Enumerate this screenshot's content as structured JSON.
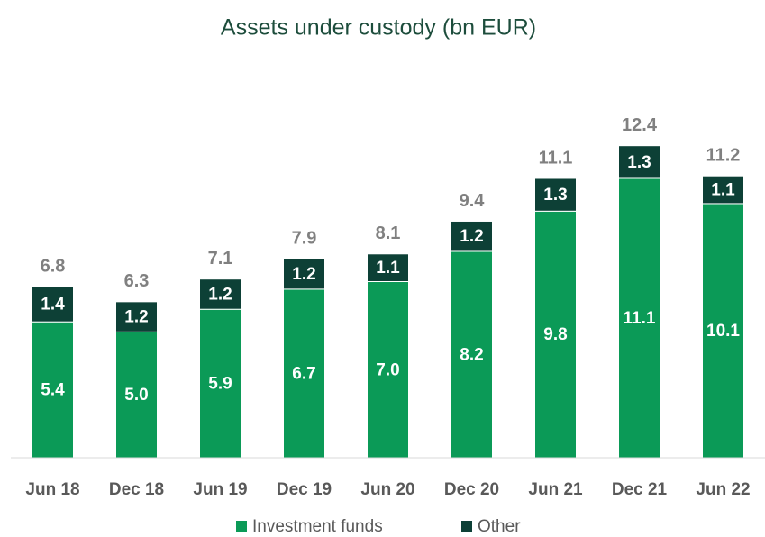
{
  "chart_data": {
    "type": "stacked_bar",
    "title": "Assets under custody (bn EUR)",
    "categories": [
      "Jun 18",
      "Dec 18",
      "Jun 19",
      "Dec 19",
      "Jun 20",
      "Dec 20",
      "Jun 21",
      "Dec 21",
      "Jun 22"
    ],
    "series": [
      {
        "name": "Investment funds",
        "color": "#0b9a57",
        "values": [
          5.4,
          5.0,
          5.9,
          6.7,
          7.0,
          8.2,
          9.8,
          11.1,
          10.1
        ],
        "value_labels": [
          "5.4",
          "5.0",
          "5.9",
          "6.7",
          "7.0",
          "8.2",
          "9.8",
          "11.1",
          "10.1"
        ]
      },
      {
        "name": "Other",
        "color": "#0d4036",
        "values": [
          1.4,
          1.2,
          1.2,
          1.2,
          1.1,
          1.2,
          1.3,
          1.3,
          1.1
        ],
        "value_labels": [
          "1.4",
          "1.2",
          "1.2",
          "1.2",
          "1.1",
          "1.2",
          "1.3",
          "1.3",
          "1.1"
        ]
      }
    ],
    "totals": [
      6.8,
      6.3,
      7.1,
      7.9,
      8.1,
      9.4,
      11.1,
      12.4,
      11.2
    ],
    "ylim": [
      0,
      14
    ],
    "legend": "bottom"
  }
}
